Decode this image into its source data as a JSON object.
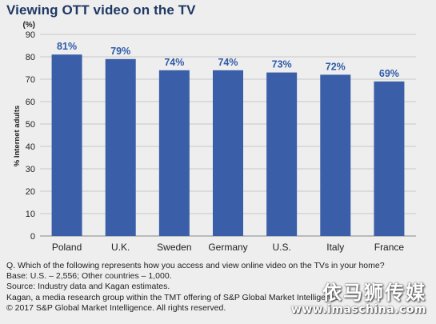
{
  "chart_data": {
    "type": "bar",
    "title": "Viewing OTT video on the TV",
    "unit_label": "(%)",
    "ylabel": "% Internet adults",
    "xlabel": "",
    "categories": [
      "Poland",
      "U.K.",
      "Sweden",
      "Germany",
      "U.S.",
      "Italy",
      "France"
    ],
    "values": [
      81,
      79,
      74,
      74,
      73,
      72,
      69
    ],
    "data_labels": [
      "81%",
      "79%",
      "74%",
      "74%",
      "73%",
      "72%",
      "69%"
    ],
    "ylim": [
      0,
      90
    ],
    "yticks": [
      0,
      10,
      20,
      30,
      40,
      50,
      60,
      70,
      80,
      90
    ],
    "grid": true,
    "legend": "none",
    "bar_color": "#3a5fa8",
    "label_color": "#2f5aa8"
  },
  "notes": {
    "question": "Q. Which of the following represents how you access and view online video on the TVs in your home?",
    "base": "Base: U.S. – 2,556; Other countries – 1,000.",
    "source": "Source: Industry data and Kagan estimates.",
    "kagan": "Kagan, a media research group within the TMT offering of S&P Global Market Intelligence.",
    "copyright": "© 2017 S&P Global Market Intelligence. All rights reserved."
  },
  "watermark": {
    "chinese": "依马狮传媒",
    "url": "www.imaschina.com"
  }
}
